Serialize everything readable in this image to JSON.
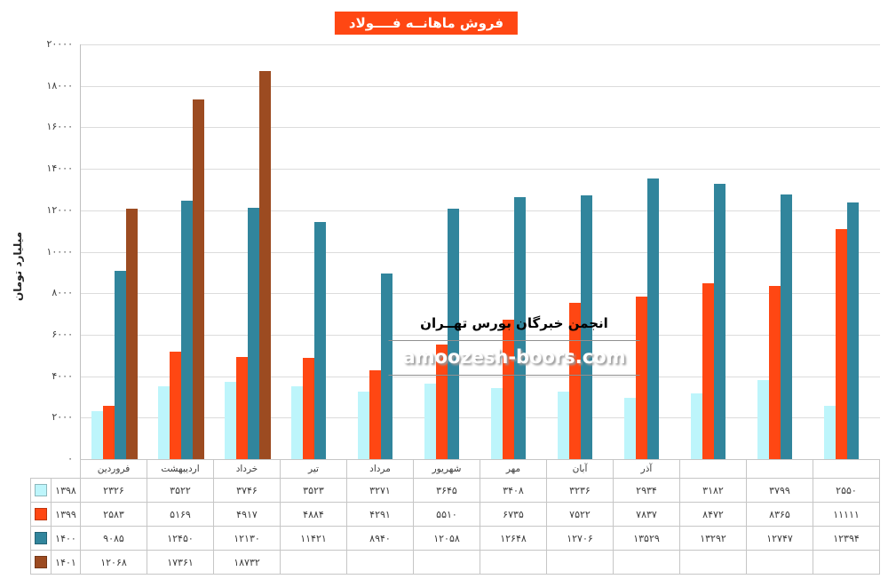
{
  "title": {
    "text": "فروش ماهانــه فــــولاد"
  },
  "colors": {
    "title_bg": "#FF4713",
    "title_fg": "#FFFFFF",
    "gridline": "#DCDCDC",
    "series_1398": "#BDF5FB",
    "series_1399": "#FF4713",
    "series_1400": "#31859C",
    "series_1401": "#9C4B21"
  },
  "y_axis": {
    "title": "میلیارد تومان",
    "min": 0,
    "max": 20000,
    "step": 2000,
    "tick_labels": [
      "۰",
      "۲۰۰۰",
      "۴۰۰۰",
      "۶۰۰۰",
      "۸۰۰۰",
      "۱۰۰۰۰",
      "۱۲۰۰۰",
      "۱۴۰۰۰",
      "۱۶۰۰۰",
      "۱۸۰۰۰",
      "۲۰۰۰۰"
    ]
  },
  "watermark": {
    "line1": "انجمن خبرگان بورس تهــران",
    "line2": "amoozesh-boors.com"
  },
  "chart_data": {
    "type": "bar",
    "title": "فروش ماهانــه فــــولاد",
    "xlabel": "",
    "ylabel": "میلیارد تومان",
    "ylim": [
      0,
      20000
    ],
    "grid": true,
    "legend_position": "left-of-data-table",
    "categories": [
      "فروردین",
      "اردیبهشت",
      "خرداد",
      "تیر",
      "مرداد",
      "شهریور",
      "مهر",
      "آبان",
      "آذر",
      "",
      "",
      ""
    ],
    "series": [
      {
        "name": "۱۳۹۸",
        "color": "#BDF5FB",
        "values": [
          2326,
          3522,
          3746,
          3523,
          3271,
          3645,
          3408,
          3236,
          2934,
          3182,
          3799,
          2550
        ]
      },
      {
        "name": "۱۳۹۹",
        "color": "#FF4713",
        "values": [
          2583,
          5169,
          4917,
          4884,
          4291,
          5510,
          6735,
          7522,
          7837,
          8472,
          8365,
          11111
        ]
      },
      {
        "name": "۱۴۰۰",
        "color": "#31859C",
        "values": [
          9085,
          12450,
          12130,
          11421,
          8940,
          12058,
          12648,
          12706,
          13529,
          13292,
          12747,
          12394
        ]
      },
      {
        "name": "۱۴۰۱",
        "color": "#9C4B21",
        "values": [
          12068,
          17361,
          18732,
          null,
          null,
          null,
          null,
          null,
          null,
          null,
          null,
          null
        ]
      }
    ]
  }
}
